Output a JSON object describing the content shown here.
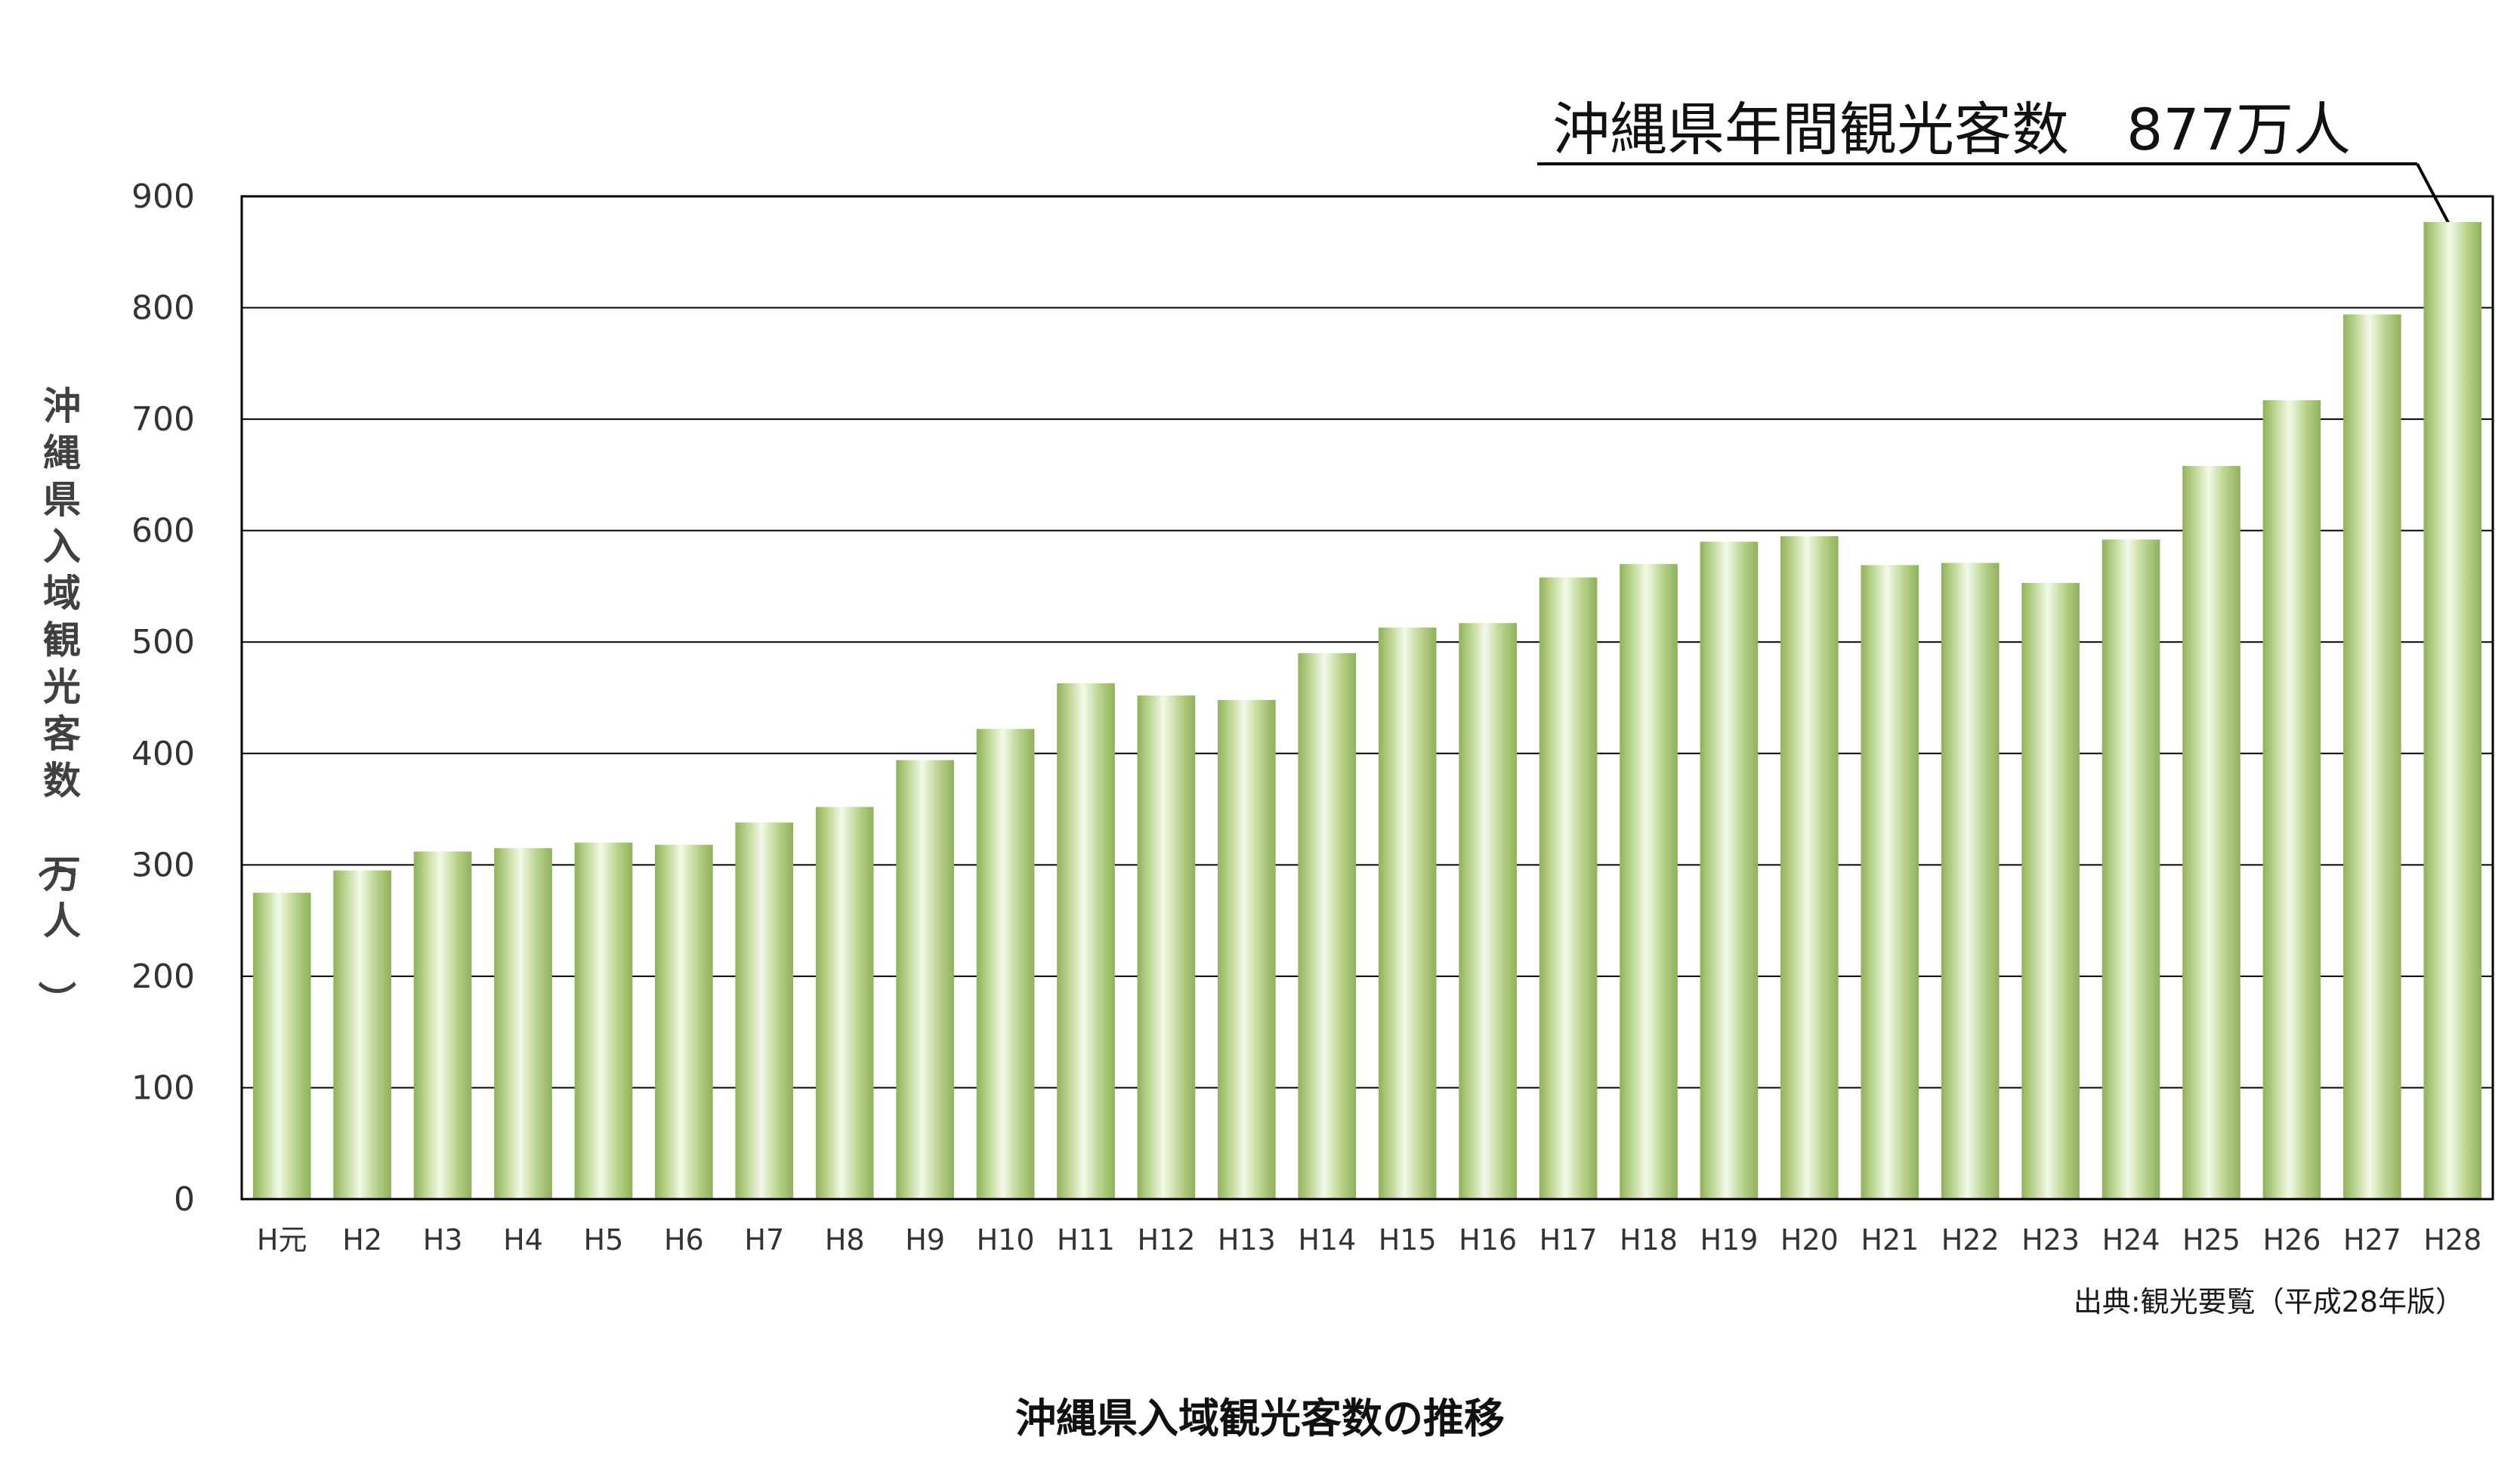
{
  "colors": {
    "bar_edge": "#8fb15c",
    "bar_mid": "#f4f9e8",
    "bar_inner": "#b7d18a",
    "grid": "#000000",
    "axis": "#000000"
  },
  "chart_data": {
    "type": "bar",
    "title": "沖縄県入域観光客数の推移",
    "ylabel": "沖縄県入域観光客数（万人）",
    "xlabel": "",
    "ylim": [
      0,
      900
    ],
    "yticks": [
      0,
      100,
      200,
      300,
      400,
      500,
      600,
      700,
      800,
      900
    ],
    "grid": true,
    "categories": [
      "H元",
      "H2",
      "H3",
      "H4",
      "H5",
      "H6",
      "H7",
      "H8",
      "H9",
      "H10",
      "H11",
      "H12",
      "H13",
      "H14",
      "H15",
      "H16",
      "H17",
      "H18",
      "H19",
      "H20",
      "H21",
      "H22",
      "H23",
      "H24",
      "H25",
      "H26",
      "H27",
      "H28"
    ],
    "values": [
      275,
      295,
      312,
      315,
      320,
      318,
      338,
      352,
      394,
      422,
      463,
      452,
      448,
      490,
      513,
      517,
      558,
      570,
      590,
      595,
      569,
      571,
      553,
      592,
      658,
      717,
      794,
      877
    ],
    "annotation": "沖縄県年間観光客数　877万人",
    "source": "出典:観光要覧（平成28年版）"
  }
}
